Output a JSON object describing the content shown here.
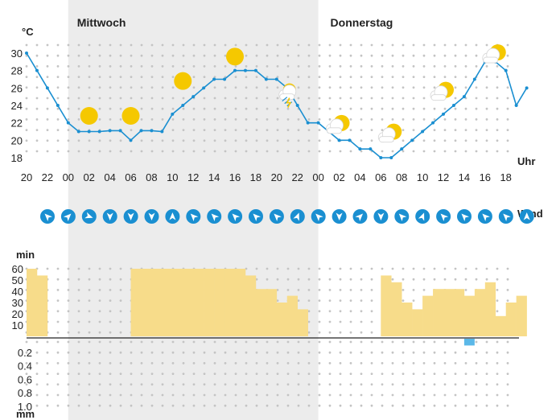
{
  "chart_data": [
    {
      "type": "line",
      "title": "",
      "day_labels": [
        "Mittwoch",
        "Donnerstag"
      ],
      "ylabel": "°C",
      "xlabel": "Uhr",
      "ylim": [
        17,
        31
      ],
      "yticks": [
        18,
        20,
        22,
        24,
        26,
        28,
        30
      ],
      "xticks": [
        "20",
        "22",
        "00",
        "02",
        "04",
        "06",
        "08",
        "10",
        "12",
        "14",
        "16",
        "18",
        "20",
        "22",
        "00",
        "02",
        "04",
        "06",
        "08",
        "10",
        "12",
        "14",
        "16",
        "18"
      ],
      "hours": [
        "20",
        "21",
        "22",
        "23",
        "00",
        "01",
        "02",
        "03",
        "04",
        "05",
        "06",
        "07",
        "08",
        "09",
        "10",
        "11",
        "12",
        "13",
        "14",
        "15",
        "16",
        "17",
        "18",
        "19",
        "20",
        "21",
        "22",
        "23",
        "00",
        "01",
        "02",
        "03",
        "04",
        "05",
        "06",
        "07",
        "08",
        "09",
        "10",
        "11",
        "12",
        "13",
        "14",
        "15",
        "16",
        "17",
        "18",
        "19",
        "20"
      ],
      "series": [
        {
          "values": [
            30,
            28,
            26,
            24,
            22,
            21,
            21,
            21,
            21.1,
            21.1,
            20,
            21.1,
            21.1,
            21,
            23,
            24,
            25,
            26,
            27,
            27,
            28,
            28,
            28,
            27,
            27,
            26,
            24,
            22,
            22,
            21,
            20,
            20,
            19,
            19,
            18,
            18,
            19,
            20,
            21,
            22,
            23,
            24,
            25,
            27,
            29,
            29,
            28,
            24,
            26
          ]
        }
      ],
      "weather_icons": [
        {
          "hour_index": 6,
          "icon": "sun-icon",
          "temp": 22.8
        },
        {
          "hour_index": 10,
          "icon": "sun-icon",
          "temp": 22.8
        },
        {
          "hour_index": 15,
          "icon": "sun-icon",
          "temp": 26.8
        },
        {
          "hour_index": 20,
          "icon": "sun-icon",
          "temp": 29.6
        },
        {
          "hour_index": 25,
          "icon": "thunderstorm-icon",
          "temp": 25.6
        },
        {
          "hour_index": 30,
          "icon": "partly-cloudy-icon",
          "temp": 21.8
        },
        {
          "hour_index": 35,
          "icon": "partly-cloudy-icon",
          "temp": 20.8
        },
        {
          "hour_index": 40,
          "icon": "partly-cloudy-icon",
          "temp": 25.6
        },
        {
          "hour_index": 45,
          "icon": "partly-cloudy-icon",
          "temp": 29.9
        }
      ]
    },
    {
      "type": "icons",
      "label": "Wind",
      "directions_deg": [
        225,
        315,
        20,
        90,
        90,
        90,
        270,
        225,
        225,
        225,
        225,
        225,
        292,
        225,
        90,
        315,
        90,
        225,
        292,
        225,
        225,
        225,
        225,
        270
      ]
    },
    {
      "type": "bar",
      "ylabel": "min",
      "ylim": [
        0,
        60
      ],
      "yticks": [
        10,
        20,
        30,
        40,
        50,
        60
      ],
      "values": [
        60,
        54,
        0,
        0,
        0,
        0,
        0,
        0,
        0,
        0,
        60,
        60,
        60,
        60,
        60,
        60,
        60,
        60,
        60,
        60,
        60,
        54,
        42,
        42,
        30,
        36,
        24,
        0,
        0,
        0,
        0,
        0,
        0,
        0,
        54,
        48,
        30,
        24,
        36,
        42,
        42,
        42,
        36,
        42,
        48,
        18,
        30,
        36
      ]
    },
    {
      "type": "bar",
      "ylabel": "mm",
      "ylim": [
        0,
        1.0
      ],
      "yticks": [
        "0.2",
        "0.4",
        "0.6",
        "0.8",
        "1.0"
      ],
      "values": [
        0,
        0,
        0,
        0,
        0,
        0,
        0,
        0,
        0,
        0,
        0,
        0,
        0,
        0,
        0,
        0,
        0,
        0,
        0,
        0,
        0,
        0,
        0,
        0,
        0,
        0,
        0,
        0,
        0,
        0,
        0,
        0,
        0,
        0,
        0,
        0,
        0,
        0,
        0,
        0,
        0,
        0,
        0.1,
        0,
        0,
        0,
        0,
        0
      ],
      "color": "#5bb8e8"
    }
  ],
  "colors": {
    "line": "#1a8fd1",
    "sun": "#f5c800",
    "sunshine_bar": "#f7dc8a",
    "night_shade": "#ececec",
    "wind_circle": "#1a8fd1"
  }
}
